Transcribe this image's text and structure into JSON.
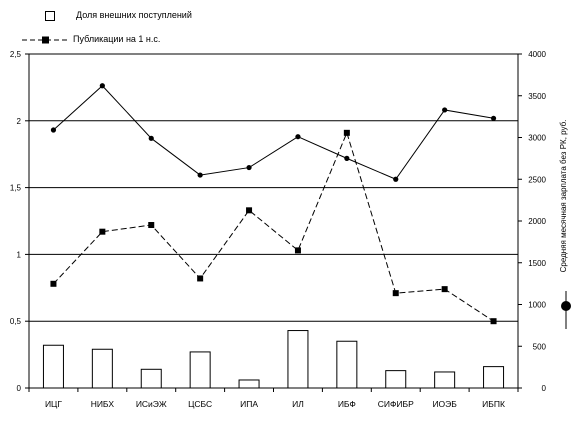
{
  "chart_data": {
    "type": "bar",
    "categories": [
      "ИЦГ",
      "НИБХ",
      "ИСиЭЖ",
      "ЦСБС",
      "ИПА",
      "ИЛ",
      "ИБФ",
      "СИФИБР",
      "ИОЭБ",
      "ИБПК"
    ],
    "series": [
      {
        "name": "Доля внешних поступлений",
        "kind": "bar",
        "axis": "left",
        "values": [
          0.32,
          0.29,
          0.14,
          0.27,
          0.06,
          0.43,
          0.35,
          0.13,
          0.12,
          0.16
        ]
      },
      {
        "name": "Публикации на 1 н.с.",
        "kind": "line-dashed",
        "axis": "left",
        "values": [
          0.78,
          1.17,
          1.22,
          0.82,
          1.33,
          1.03,
          1.91,
          0.71,
          0.74,
          0.5
        ]
      },
      {
        "name": "",
        "kind": "line-solid",
        "axis": "right",
        "values": [
          3090,
          3620,
          2990,
          2550,
          2640,
          3010,
          2750,
          2500,
          3330,
          3230
        ]
      }
    ],
    "y_left": {
      "min": 0,
      "max": 2.5,
      "ticks": [
        "0",
        "0,5",
        "1",
        "1,5",
        "2",
        "2,5"
      ]
    },
    "y_right": {
      "min": 0,
      "max": 4000,
      "ticks": [
        "0",
        "500",
        "1000",
        "1500",
        "2000",
        "2500",
        "3000",
        "3500",
        "4000"
      ],
      "label": "Средняя месячная зарплата без РК, руб."
    },
    "gridlines": [
      0.5,
      1,
      1.5,
      2
    ],
    "legend": {
      "position": "top-left"
    },
    "colors": {
      "line": "#000000",
      "bar_fill": "#ffffff",
      "bar_stroke": "#000000"
    }
  }
}
